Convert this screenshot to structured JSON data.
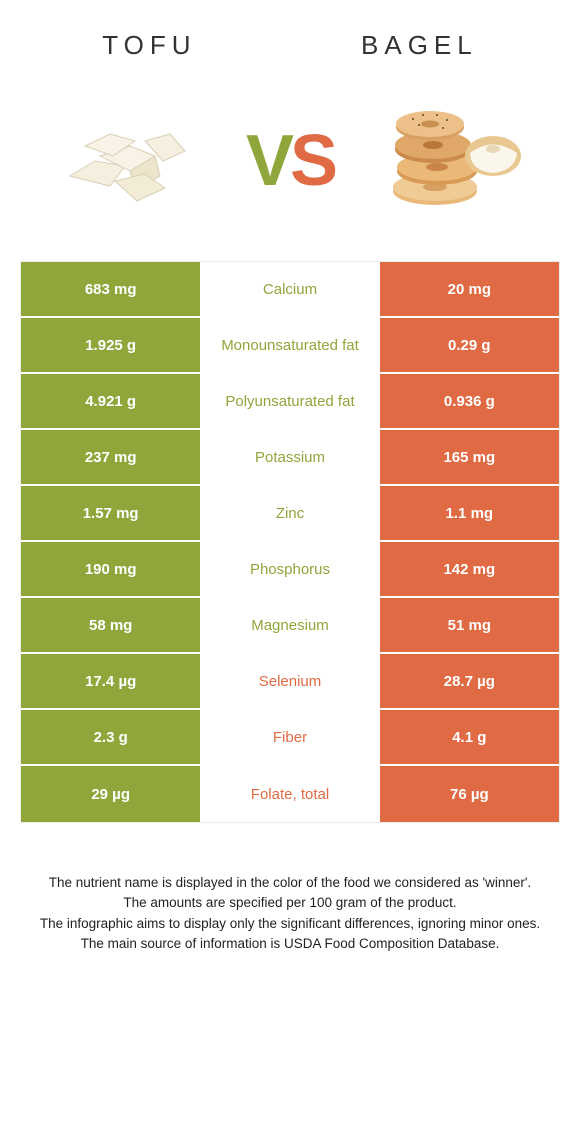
{
  "titles": {
    "left": "TOFU",
    "right": "BAGEL"
  },
  "vs": {
    "v": "V",
    "s": "S"
  },
  "colors": {
    "left": "#8fa63b",
    "right": "#e06a44",
    "left_text": "#ffffff",
    "right_text": "#ffffff",
    "mid_bg": "#ffffff"
  },
  "rows": [
    {
      "label": "Calcium",
      "left": "683 mg",
      "right": "20 mg",
      "winner": "left"
    },
    {
      "label": "Monounsaturated fat",
      "left": "1.925 g",
      "right": "0.29 g",
      "winner": "left"
    },
    {
      "label": "Polyunsaturated fat",
      "left": "4.921 g",
      "right": "0.936 g",
      "winner": "left"
    },
    {
      "label": "Potassium",
      "left": "237 mg",
      "right": "165 mg",
      "winner": "left"
    },
    {
      "label": "Zinc",
      "left": "1.57 mg",
      "right": "1.1 mg",
      "winner": "left"
    },
    {
      "label": "Phosphorus",
      "left": "190 mg",
      "right": "142 mg",
      "winner": "left"
    },
    {
      "label": "Magnesium",
      "left": "58 mg",
      "right": "51 mg",
      "winner": "left"
    },
    {
      "label": "Selenium",
      "left": "17.4 µg",
      "right": "28.7 µg",
      "winner": "right"
    },
    {
      "label": "Fiber",
      "left": "2.3 g",
      "right": "4.1 g",
      "winner": "right"
    },
    {
      "label": "Folate, total",
      "left": "29 µg",
      "right": "76 µg",
      "winner": "right"
    }
  ],
  "footnotes": [
    "The nutrient name is displayed in the color of the food we considered as 'winner'.",
    "The amounts are specified per 100 gram of the product.",
    "The infographic aims to display only the significant differences, ignoring minor ones.",
    "The main source of information is USDA Food Composition Database."
  ]
}
